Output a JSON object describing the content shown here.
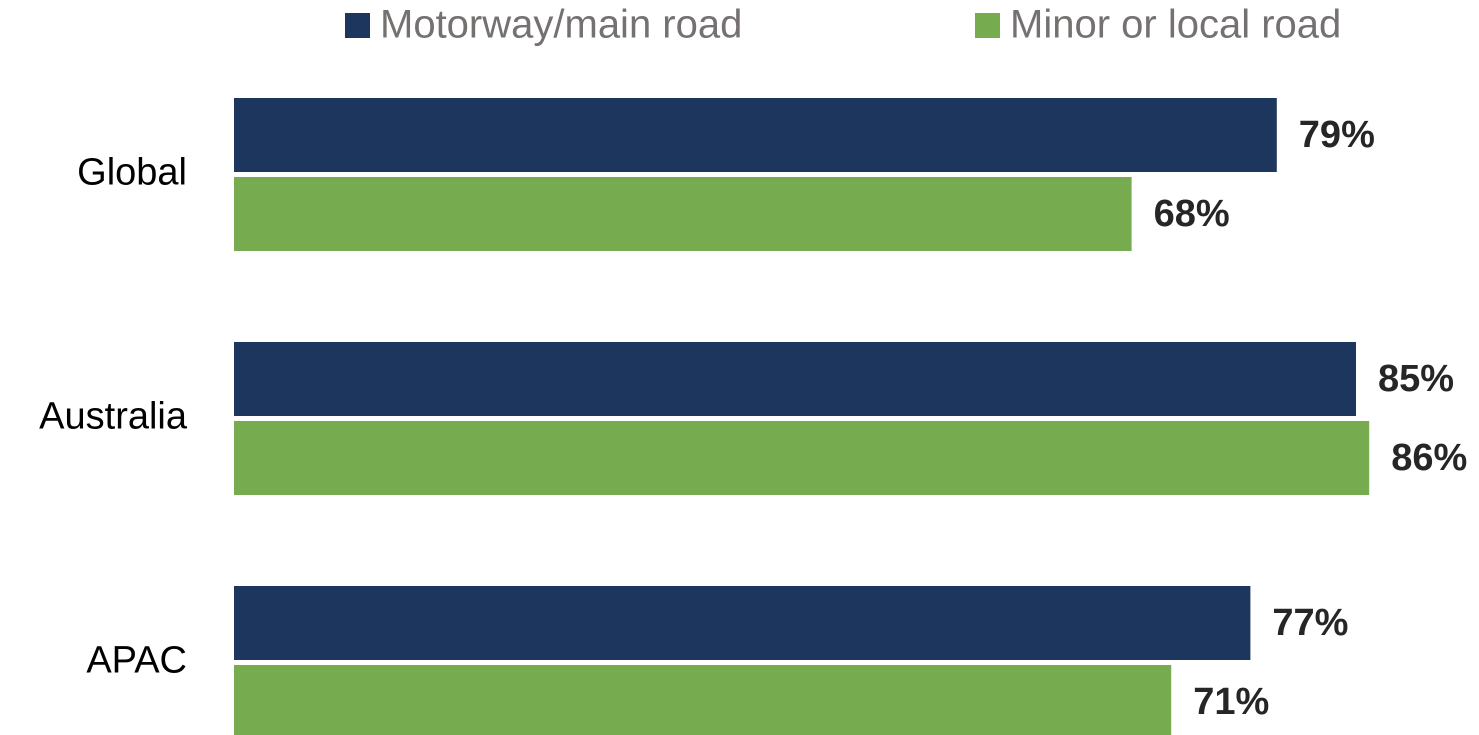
{
  "chart_data": {
    "type": "bar",
    "orientation": "horizontal",
    "categories": [
      "Global",
      "Australia",
      "APAC"
    ],
    "series": [
      {
        "name": "Motorway/main road",
        "color": "#1d365d",
        "values": [
          79,
          85,
          77
        ],
        "value_labels": [
          "79%",
          "85%",
          "77%"
        ]
      },
      {
        "name": "Minor or local road",
        "color": "#77ab4f",
        "values": [
          68,
          86,
          71
        ],
        "value_labels": [
          "68%",
          "86%",
          "71%"
        ]
      }
    ],
    "legend": "top"
  }
}
